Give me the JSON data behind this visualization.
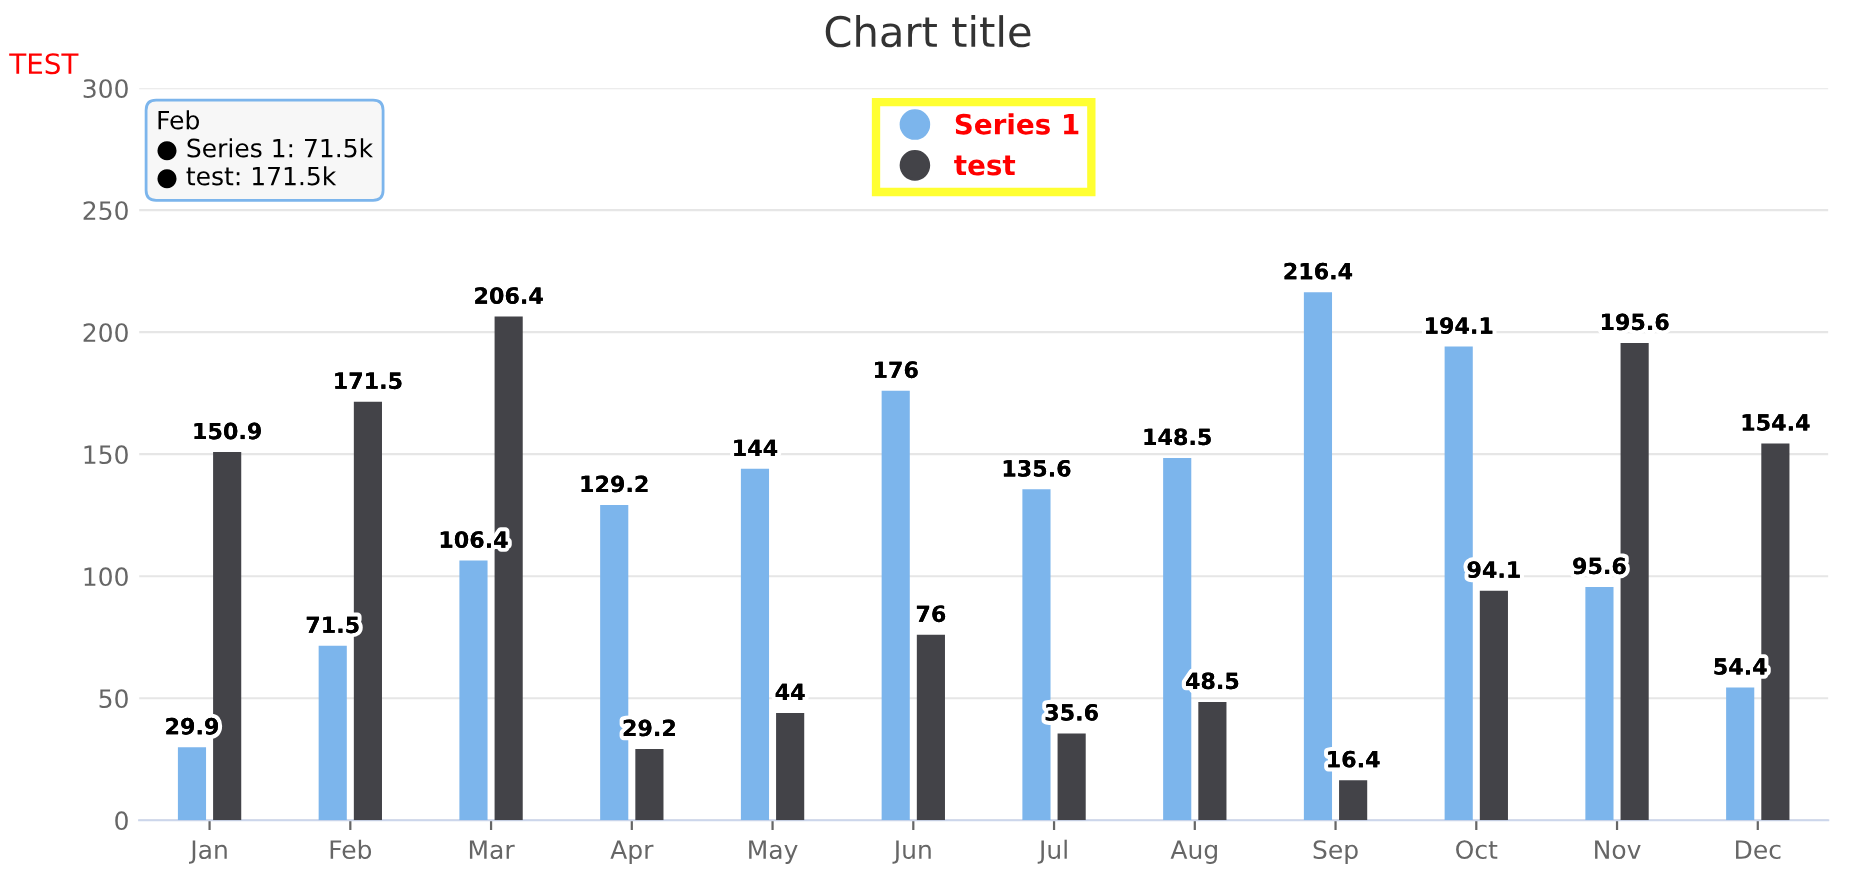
{
  "chart_data": {
    "type": "bar",
    "title": "Chart title",
    "ylabel": "TEST",
    "categories": [
      "Jan",
      "Feb",
      "Mar",
      "Apr",
      "May",
      "Jun",
      "Jul",
      "Aug",
      "Sep",
      "Oct",
      "Nov",
      "Dec"
    ],
    "series": [
      {
        "name": "Series 1",
        "color": "#7cb5ec",
        "values": [
          29.9,
          71.5,
          106.4,
          129.2,
          144,
          176,
          135.6,
          148.5,
          216.4,
          194.1,
          95.6,
          54.4
        ]
      },
      {
        "name": "test",
        "color": "#434348",
        "values": [
          150.9,
          171.5,
          206.4,
          29.2,
          44,
          76,
          35.6,
          48.5,
          16.4,
          94.1,
          195.6,
          154.4
        ]
      }
    ],
    "ylim": [
      0,
      300
    ],
    "yticks": [
      0,
      50,
      100,
      150,
      200,
      250,
      300
    ],
    "grid": "y",
    "legend": "top",
    "data_labels": true,
    "annotations": [
      "Feb\n● Series 1: 71.5k\n● test: 171.5k"
    ]
  }
}
